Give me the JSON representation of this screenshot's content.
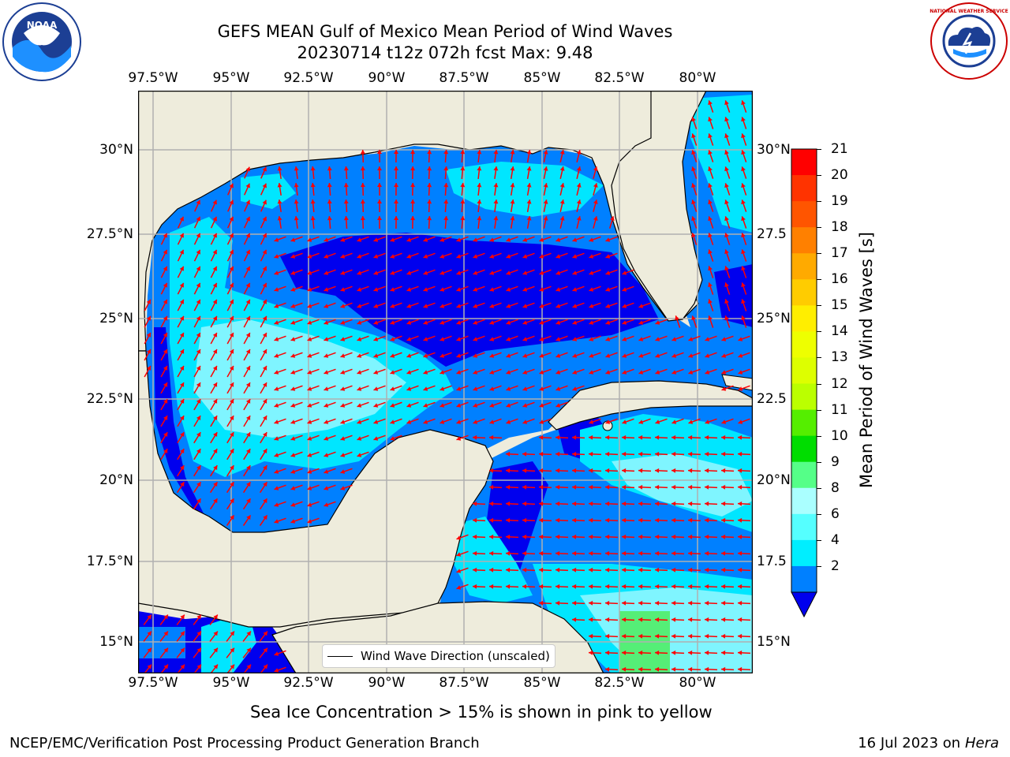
{
  "header": {
    "title_line1": "GEFS MEAN Gulf of Mexico Mean Period of Wind Waves",
    "title_line2": "20230714 t12z 072h fcst   Max: 9.48"
  },
  "logos": {
    "left": {
      "icon": "noaa-logo",
      "text": "NOAA"
    },
    "right": {
      "icon": "nws-logo",
      "text": "NATIONAL WEATHER SERVICE"
    }
  },
  "map": {
    "lon_ticks_top": [
      "97.5°W",
      "95°W",
      "92.5°W",
      "90°W",
      "87.5°W",
      "85°W",
      "82.5°W",
      "80°W"
    ],
    "lon_ticks_bottom": [
      "97.5°W",
      "95°W",
      "92.5°W",
      "90°W",
      "87.5°W",
      "85°W",
      "82.5°W",
      "80°W"
    ],
    "lat_ticks_left": [
      "30°N",
      "27.5°N",
      "25°N",
      "22.5°N",
      "20°N",
      "17.5°N",
      "15°N"
    ],
    "lat_ticks_right": [
      "30°N",
      "27.5",
      "25°N",
      "22.5",
      "20°N",
      "17.5",
      "15°N"
    ],
    "legend_label": "Wind Wave Direction (unscaled)",
    "colors": {
      "land": "#eeecdc",
      "ocean_2_4": "#0080ff",
      "ocean_lt2": "#0000ee",
      "ocean_4_6": "#00e6ff",
      "ocean_6_8": "#7ff5ff",
      "ocean_8_10": "#55ee77",
      "arrows": "#ff0000",
      "grid": "#b0b0b0"
    }
  },
  "colorbar": {
    "label": "Mean Period of Wind Waves [s]",
    "ticks": [
      "21",
      "20",
      "19",
      "18",
      "17",
      "16",
      "15",
      "14",
      "13",
      "12",
      "11",
      "10",
      "9",
      "8",
      "6",
      "4",
      "2"
    ],
    "colors_top_to_bottom": [
      "#ff0000",
      "#ff3300",
      "#ff5500",
      "#ff8000",
      "#ffaa00",
      "#ffcc00",
      "#ffee00",
      "#eeff00",
      "#ddff00",
      "#bbff00",
      "#55ee00",
      "#00dd00",
      "#55ff88",
      "#aaffff",
      "#55ffff",
      "#00eeff",
      "#0080ff"
    ],
    "extend_color": "#0000ee"
  },
  "footer": {
    "note": "Sea Ice Concentration > 15% is shown in pink to yellow",
    "credit": "NCEP/EMC/Verification Post Processing Product Generation Branch",
    "date_text": "16 Jul 2023 on ",
    "machine": "Hera"
  }
}
